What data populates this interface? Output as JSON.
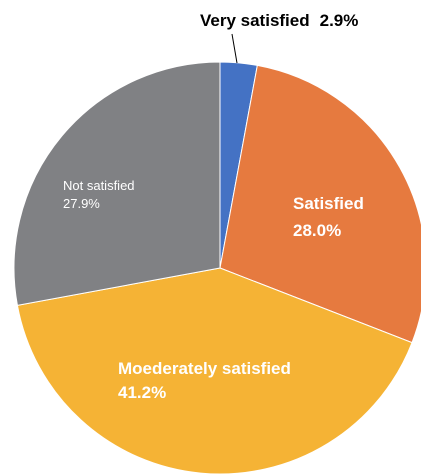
{
  "chart_data": {
    "type": "pie",
    "title": "",
    "slices": [
      {
        "label": "Very satisfied",
        "value": 2.9,
        "value_label": "2.9%",
        "color": "#4472C4"
      },
      {
        "label": "Satisfied",
        "value": 28.0,
        "value_label": "28.0%",
        "color": "#E67A3F"
      },
      {
        "label": "Moederately satisfied",
        "value": 41.2,
        "value_label": "41.2%",
        "color": "#F5B335"
      },
      {
        "label": "Not satisfied",
        "value": 27.9,
        "value_label": "27.9%",
        "color": "#808184"
      }
    ],
    "start_angle": "12 o'clock",
    "direction": "clockwise",
    "legend": "none",
    "label_text_colors": [
      "#000000",
      "#ffffff",
      "#ffffff",
      "#ffffff"
    ]
  }
}
